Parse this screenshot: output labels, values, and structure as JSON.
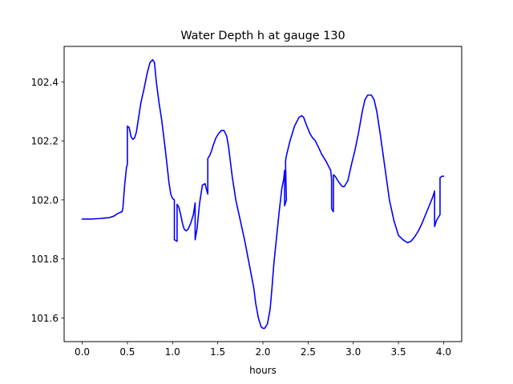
{
  "chart_data": {
    "type": "line",
    "title": "Water Depth h at gauge 130",
    "xlabel": "hours",
    "ylabel": "",
    "xlim": [
      -0.2,
      4.2
    ],
    "ylim": [
      101.52,
      102.52
    ],
    "grid": false,
    "xticks": [
      0.0,
      0.5,
      1.0,
      1.5,
      2.0,
      2.5,
      3.0,
      3.5,
      4.0
    ],
    "xtick_labels": [
      "0.0",
      "0.5",
      "1.0",
      "1.5",
      "2.0",
      "2.5",
      "3.0",
      "3.5",
      "4.0"
    ],
    "yticks": [
      101.6,
      101.8,
      102.0,
      102.2,
      102.4
    ],
    "ytick_labels": [
      "101.6",
      "101.8",
      "102.0",
      "102.2",
      "102.4"
    ],
    "series": [
      {
        "color": "#0000ff",
        "x": [
          0.0,
          0.1,
          0.2,
          0.3,
          0.35,
          0.4,
          0.44,
          0.45,
          0.47,
          0.49,
          0.5,
          0.5,
          0.52,
          0.54,
          0.56,
          0.58,
          0.6,
          0.62,
          0.65,
          0.68,
          0.72,
          0.75,
          0.78,
          0.8,
          0.82,
          0.85,
          0.88,
          0.92,
          0.96,
          0.98,
          1.0,
          1.02,
          1.02,
          1.05,
          1.05,
          1.07,
          1.09,
          1.11,
          1.13,
          1.15,
          1.17,
          1.2,
          1.23,
          1.25,
          1.25,
          1.27,
          1.3,
          1.33,
          1.36,
          1.38,
          1.39,
          1.39,
          1.41,
          1.43,
          1.45,
          1.48,
          1.51,
          1.54,
          1.57,
          1.6,
          1.62,
          1.64,
          1.66,
          1.7,
          1.75,
          1.8,
          1.85,
          1.9,
          1.92,
          1.95,
          1.98,
          2.0,
          2.02,
          2.05,
          2.08,
          2.1,
          2.12,
          2.15,
          2.18,
          2.21,
          2.23,
          2.24,
          2.24,
          2.26,
          2.25,
          2.26,
          2.3,
          2.35,
          2.4,
          2.43,
          2.45,
          2.48,
          2.52,
          2.55,
          2.58,
          2.62,
          2.65,
          2.7,
          2.75,
          2.76,
          2.76,
          2.78,
          2.78,
          2.8,
          2.84,
          2.88,
          2.9,
          2.94,
          2.98,
          3.02,
          3.06,
          3.1,
          3.13,
          3.16,
          3.2,
          3.23,
          3.26,
          3.3,
          3.35,
          3.4,
          3.45,
          3.5,
          3.55,
          3.6,
          3.64,
          3.68,
          3.72,
          3.76,
          3.8,
          3.84,
          3.88,
          3.9,
          3.9,
          3.92,
          3.94,
          3.96,
          3.96,
          3.98,
          4.0
        ],
        "y": [
          101.935,
          101.935,
          101.937,
          101.94,
          101.945,
          101.955,
          101.96,
          101.97,
          102.05,
          102.11,
          102.12,
          102.25,
          102.245,
          102.215,
          102.205,
          102.21,
          102.23,
          102.27,
          102.33,
          102.37,
          102.43,
          102.465,
          102.475,
          102.465,
          102.4,
          102.33,
          102.27,
          102.17,
          102.06,
          102.02,
          102.005,
          102.0,
          101.865,
          101.86,
          101.985,
          101.975,
          101.95,
          101.92,
          101.9,
          101.895,
          101.9,
          101.92,
          101.95,
          101.99,
          101.865,
          101.9,
          101.99,
          102.05,
          102.055,
          102.03,
          102.02,
          102.14,
          102.15,
          102.165,
          102.185,
          102.21,
          102.225,
          102.235,
          102.235,
          102.215,
          102.18,
          102.13,
          102.08,
          102.0,
          101.93,
          101.86,
          101.78,
          101.7,
          101.65,
          101.6,
          101.57,
          101.565,
          101.565,
          101.58,
          101.63,
          101.7,
          101.78,
          101.87,
          101.96,
          102.04,
          102.07,
          102.1,
          101.98,
          102.0,
          102.13,
          102.15,
          102.2,
          102.25,
          102.28,
          102.285,
          102.28,
          102.255,
          102.225,
          102.21,
          102.2,
          102.175,
          102.155,
          102.13,
          102.1,
          102.07,
          101.97,
          101.96,
          102.085,
          102.08,
          102.06,
          102.045,
          102.045,
          102.065,
          102.12,
          102.17,
          102.23,
          102.3,
          102.34,
          102.355,
          102.355,
          102.34,
          102.3,
          102.22,
          102.11,
          102.0,
          101.93,
          101.88,
          101.865,
          101.855,
          101.86,
          101.875,
          101.895,
          101.92,
          101.95,
          101.98,
          102.01,
          102.03,
          101.91,
          101.93,
          101.94,
          101.95,
          102.075,
          102.08,
          102.08
        ]
      }
    ]
  }
}
